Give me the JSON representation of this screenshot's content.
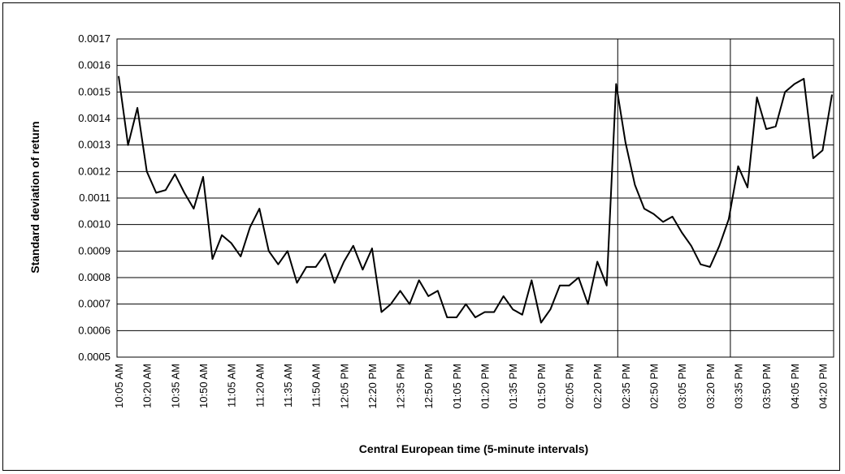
{
  "chart_data": {
    "type": "line",
    "xlabel": "Central European time (5-minute intervals)",
    "ylabel": "Standard deviation of return",
    "ylim": [
      0.0005,
      0.0017
    ],
    "y_ticks": [
      "0.0005",
      "0.0006",
      "0.0007",
      "0.0008",
      "0.0009",
      "0.0010",
      "0.0011",
      "0.0012",
      "0.0013",
      "0.0014",
      "0.0015",
      "0.0016",
      "0.0017"
    ],
    "y_tick_values": [
      0.0005,
      0.0006,
      0.0007,
      0.0008,
      0.0009,
      0.001,
      0.0011,
      0.0012,
      0.0013,
      0.0014,
      0.0015,
      0.0016,
      0.0017
    ],
    "x_tick_labels": [
      "10:05 AM",
      "10:20 AM",
      "10:35 AM",
      "10:50 AM",
      "11:05 AM",
      "11:20 AM",
      "11:35 AM",
      "11:50 AM",
      "12:05 PM",
      "12:20 PM",
      "12:35 PM",
      "12:50 PM",
      "01:05 PM",
      "01:20 PM",
      "01:35 PM",
      "01:50 PM",
      "02:05 PM",
      "02:20 PM",
      "02:35 PM",
      "02:50 PM",
      "03:05 PM",
      "03:20 PM",
      "03:35 PM",
      "03:50 PM",
      "04:05 PM",
      "04:20 PM"
    ],
    "grid": "horizontal",
    "vertical_markers": [
      "02:30 PM",
      "03:30 PM"
    ],
    "series": [
      {
        "color": "#000000",
        "values": [
          0.00156,
          0.0013,
          0.00144,
          0.0012,
          0.00112,
          0.00113,
          0.00119,
          0.00112,
          0.00106,
          0.00118,
          0.00087,
          0.00096,
          0.00093,
          0.00088,
          0.00099,
          0.00106,
          0.0009,
          0.00085,
          0.0009,
          0.00078,
          0.00084,
          0.00084,
          0.00089,
          0.00078,
          0.00086,
          0.00092,
          0.00083,
          0.00091,
          0.00067,
          0.0007,
          0.00075,
          0.0007,
          0.00079,
          0.00073,
          0.00075,
          0.00065,
          0.00065,
          0.0007,
          0.00065,
          0.00067,
          0.00067,
          0.00073,
          0.00068,
          0.00066,
          0.00079,
          0.00063,
          0.00068,
          0.00077,
          0.00077,
          0.0008,
          0.0007,
          0.00086,
          0.00077,
          0.00153,
          0.00131,
          0.00115,
          0.00106,
          0.00104,
          0.00101,
          0.00103,
          0.00097,
          0.00092,
          0.00085,
          0.00084,
          0.00092,
          0.00102,
          0.00122,
          0.00114,
          0.00148,
          0.00136,
          0.00137,
          0.0015,
          0.00153,
          0.00155,
          0.00125,
          0.00128,
          0.00149
        ]
      }
    ]
  }
}
